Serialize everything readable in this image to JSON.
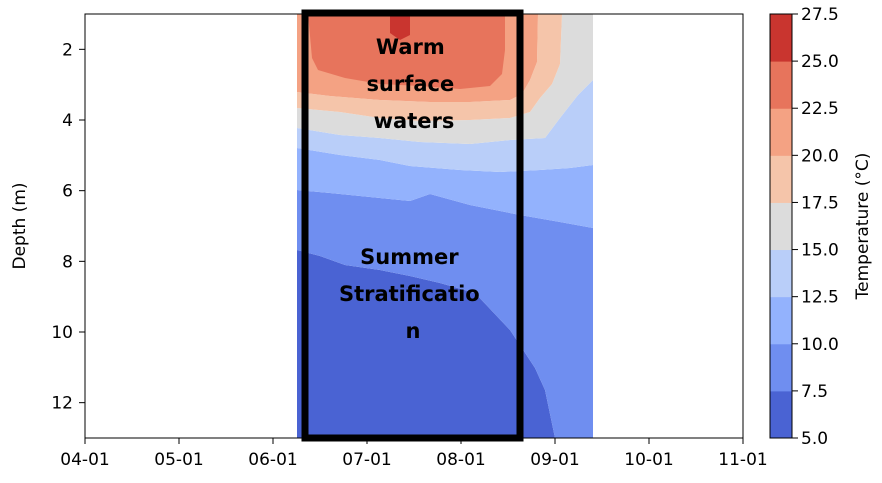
{
  "chart_data": {
    "type": "heatmap",
    "title": "",
    "ylabel": "Depth (m)",
    "xlabel": "",
    "x_ticks": [
      "04-01",
      "05-01",
      "06-01",
      "07-01",
      "08-01",
      "09-01",
      "10-01",
      "11-01"
    ],
    "y_ticks": [
      "2",
      "4",
      "6",
      "8",
      "10",
      "12"
    ],
    "y_tick_values": [
      2,
      4,
      6,
      8,
      10,
      12
    ],
    "xlim": [
      "04-01",
      "11-01"
    ],
    "ylim": [
      13,
      1
    ],
    "y_inverted": true,
    "data_extent_x": [
      "06-10",
      "09-15"
    ],
    "colorbar": {
      "label": "Temperature (°C)",
      "ticks": [
        "5.0",
        "7.5",
        "10.0",
        "12.5",
        "15.0",
        "17.5",
        "20.0",
        "22.5",
        "25.0",
        "27.5"
      ],
      "tick_values": [
        5.0,
        7.5,
        10.0,
        12.5,
        15.0,
        17.5,
        20.0,
        22.5,
        25.0,
        27.5
      ],
      "colors": [
        "#4a63d3",
        "#6f8ef0",
        "#93b2fd",
        "#b9cef9",
        "#dcdcdc",
        "#f5c5aa",
        "#f4a283",
        "#e7745c",
        "#c9352f"
      ]
    },
    "contour_levels": [
      {
        "min": 5.0,
        "max": 7.5,
        "color": "#4a63d3"
      },
      {
        "min": 7.5,
        "max": 10.0,
        "color": "#6f8ef0"
      },
      {
        "min": 10.0,
        "max": 12.5,
        "color": "#93b2fd"
      },
      {
        "min": 12.5,
        "max": 15.0,
        "color": "#b9cef9"
      },
      {
        "min": 15.0,
        "max": 17.5,
        "color": "#dcdcdc"
      },
      {
        "min": 17.5,
        "max": 20.0,
        "color": "#f5c5aa"
      },
      {
        "min": 20.0,
        "max": 22.5,
        "color": "#f4a283"
      },
      {
        "min": 22.5,
        "max": 25.0,
        "color": "#e7745c"
      },
      {
        "min": 25.0,
        "max": 27.5,
        "color": "#c9352f"
      }
    ],
    "annotations": [
      {
        "text": "Warm surface waters",
        "lines": [
          "Warm",
          "surface",
          "waters"
        ]
      },
      {
        "text": "Summer Stratification",
        "lines": [
          "Summer",
          "Stratificatio",
          "n"
        ]
      }
    ],
    "highlight_box": {
      "x_start": "06-15",
      "x_end": "08-25",
      "y_top": 1,
      "y_bottom": 13
    }
  }
}
